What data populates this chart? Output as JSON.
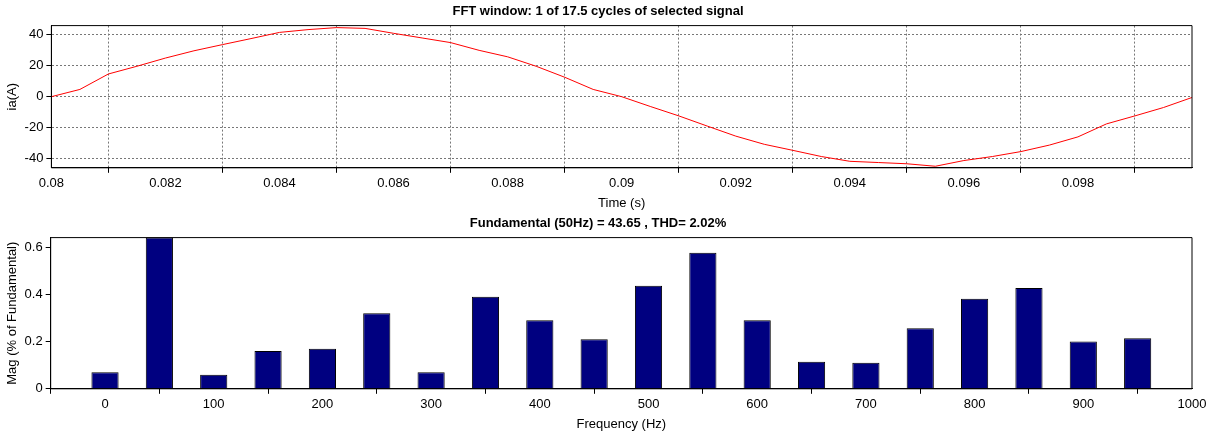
{
  "chart_data": [
    {
      "type": "line",
      "title": "FFT window: 1 of 17.5 cycles of selected signal",
      "xlabel": "Time (s)",
      "ylabel": "ia(A)",
      "x": [
        0.08,
        0.0805,
        0.081,
        0.0815,
        0.082,
        0.0825,
        0.083,
        0.0835,
        0.084,
        0.0845,
        0.085,
        0.0855,
        0.086,
        0.0865,
        0.087,
        0.0875,
        0.088,
        0.0885,
        0.089,
        0.0895,
        0.09,
        0.0905,
        0.091,
        0.0915,
        0.092,
        0.0925,
        0.093,
        0.0935,
        0.094,
        0.0945,
        0.095,
        0.0955,
        0.096,
        0.0965,
        0.097,
        0.0975,
        0.098,
        0.0985,
        0.099,
        0.0995,
        0.1
      ],
      "series": [
        {
          "color": "#ff0000",
          "values": [
            0,
            4.7,
            14.7,
            19.7,
            25,
            29.7,
            33.7,
            37.6,
            41.6,
            43.4,
            44.7,
            44.2,
            41,
            38,
            35,
            30,
            25.8,
            19.7,
            12.6,
            4.7,
            0,
            -6.3,
            -12.4,
            -19,
            -25.5,
            -30.8,
            -34.7,
            -38.7,
            -41.8,
            -42.6,
            -43.4,
            -45,
            -41.3,
            -38.7,
            -35.5,
            -31.3,
            -26,
            -17.6,
            -12.4,
            -7,
            -0.5
          ]
        }
      ],
      "xlim": [
        0.08,
        0.1
      ],
      "xticks": [
        0.08,
        0.082,
        0.084,
        0.086,
        0.088,
        0.09,
        0.092,
        0.094,
        0.096,
        0.098
      ],
      "ylim": [
        -46,
        46
      ],
      "yticks": [
        -40,
        -20,
        0,
        20,
        40
      ],
      "grid": true,
      "legend": false,
      "marker": "none",
      "line_style": "solid"
    },
    {
      "type": "bar",
      "title": "Fundamental (50Hz) = 43.65 , THD= 2.02%",
      "xlabel": "Frequency (Hz)",
      "ylabel": "Mag (% of Fundamental)",
      "x": [
        0,
        50,
        100,
        150,
        200,
        250,
        300,
        350,
        400,
        450,
        500,
        550,
        600,
        650,
        700,
        750,
        800,
        850,
        900,
        950
      ],
      "series": [
        {
          "color": "#000080",
          "values": [
            0.07,
            0.64,
            0.06,
            0.16,
            0.17,
            0.32,
            0.07,
            0.39,
            0.29,
            0.21,
            0.436,
            0.576,
            0.29,
            0.114,
            0.11,
            0.256,
            0.381,
            0.427,
            0.2,
            0.214
          ]
        }
      ],
      "xlim": [
        -50,
        1000
      ],
      "xticks": [
        0,
        100,
        200,
        300,
        400,
        500,
        600,
        700,
        800,
        900,
        1000
      ],
      "ylim": [
        0,
        0.64
      ],
      "yticks": [
        0,
        0.2,
        0.4,
        0.6
      ],
      "grid": false,
      "legend": false
    }
  ]
}
